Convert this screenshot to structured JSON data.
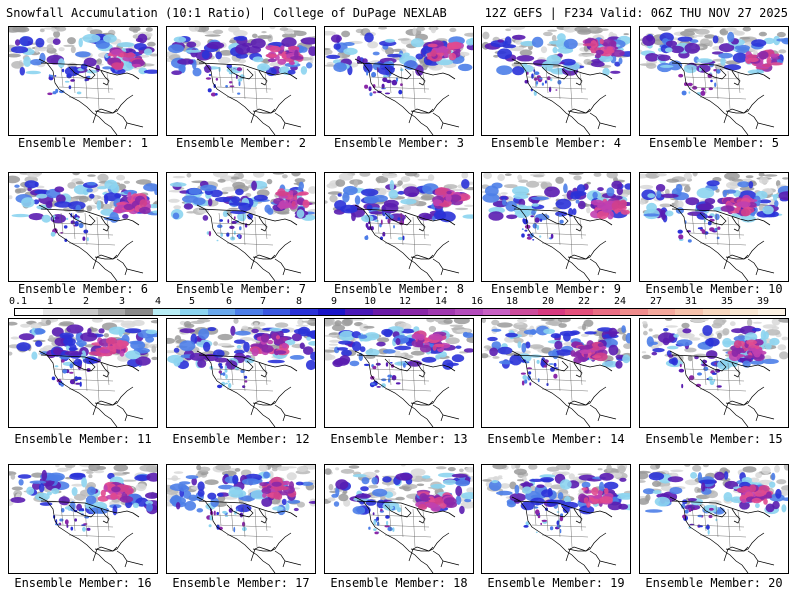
{
  "header": {
    "left": "Snowfall Accumulation (10:1 Ratio) | College of DuPage NEXLAB",
    "right": "12Z GEFS | F234 Valid: 06Z THU NOV 27 2025"
  },
  "panels": [
    {
      "label": "Ensemble Member: 1"
    },
    {
      "label": "Ensemble Member: 2"
    },
    {
      "label": "Ensemble Member: 3"
    },
    {
      "label": "Ensemble Member: 4"
    },
    {
      "label": "Ensemble Member: 5"
    },
    {
      "label": "Ensemble Member: 6"
    },
    {
      "label": "Ensemble Member: 7"
    },
    {
      "label": "Ensemble Member: 8"
    },
    {
      "label": "Ensemble Member: 9"
    },
    {
      "label": "Ensemble Member: 10"
    },
    {
      "label": "Ensemble Member: 11"
    },
    {
      "label": "Ensemble Member: 12"
    },
    {
      "label": "Ensemble Member: 13"
    },
    {
      "label": "Ensemble Member: 14"
    },
    {
      "label": "Ensemble Member: 15"
    },
    {
      "label": "Ensemble Member: 16"
    },
    {
      "label": "Ensemble Member: 17"
    },
    {
      "label": "Ensemble Member: 18"
    },
    {
      "label": "Ensemble Member: 19"
    },
    {
      "label": "Ensemble Member: 20"
    }
  ],
  "colorscale": {
    "labels": [
      "0.1",
      "1",
      "2",
      "3",
      "4",
      "5",
      "6",
      "7",
      "8",
      "9",
      "10",
      "12",
      "14",
      "16",
      "18",
      "20",
      "22",
      "24",
      "27",
      "31",
      "35",
      "39"
    ],
    "colors": [
      "#ffffff",
      "#e8e8e8",
      "#c8c8c8",
      "#a8a8a8",
      "#8a8a8a",
      "#b8ecf4",
      "#8cd4f0",
      "#6aa8ec",
      "#4c7ee8",
      "#3a58e0",
      "#2a32d8",
      "#1a14c8",
      "#4a18b8",
      "#6c1ca8",
      "#8a28a8",
      "#a038b0",
      "#b44cbc",
      "#c860c4",
      "#cc4c9c",
      "#d83a80",
      "#e4507c",
      "#ea6e84",
      "#f08c8c",
      "#f4a89c",
      "#f6c2ac",
      "#f8d8c0",
      "#fae8d4",
      "#fcf2e4"
    ]
  }
}
